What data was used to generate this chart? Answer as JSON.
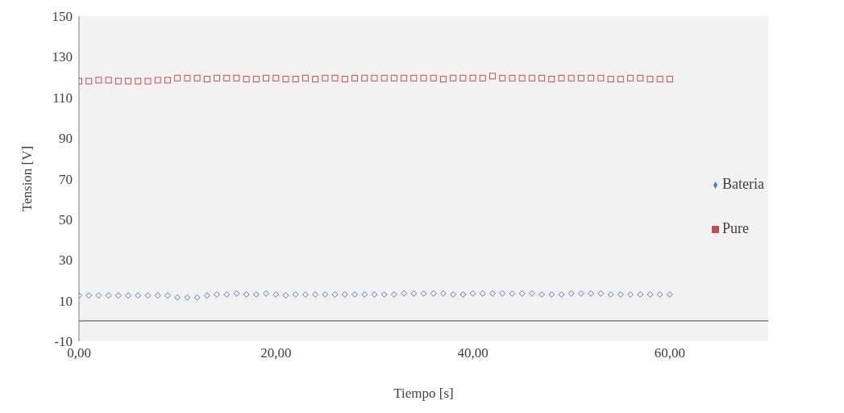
{
  "chart_data": {
    "type": "scatter",
    "xlabel": "Tiempo  [s]",
    "ylabel": "Tension  [V]",
    "xlim": [
      0,
      70
    ],
    "xticks": [
      {
        "value": 0,
        "label": "0,00"
      },
      {
        "value": 20,
        "label": "20,00"
      },
      {
        "value": 40,
        "label": "40,00"
      },
      {
        "value": 60,
        "label": "60,00"
      }
    ],
    "ylim": [
      -10,
      150
    ],
    "yticks": [
      -10,
      10,
      30,
      50,
      70,
      90,
      110,
      130,
      150
    ],
    "x": [
      0,
      1,
      2,
      3,
      4,
      5,
      6,
      7,
      8,
      9,
      10,
      11,
      12,
      13,
      14,
      15,
      16,
      17,
      18,
      19,
      20,
      21,
      22,
      23,
      24,
      25,
      26,
      27,
      28,
      29,
      30,
      31,
      32,
      33,
      34,
      35,
      36,
      37,
      38,
      39,
      40,
      41,
      42,
      43,
      44,
      45,
      46,
      47,
      48,
      49,
      50,
      51,
      52,
      53,
      54,
      55,
      56,
      57,
      58,
      59,
      60
    ],
    "grid": false,
    "legend": "right",
    "ref_lines": [
      {
        "axis": "y",
        "value": 0,
        "color": "#808080"
      }
    ],
    "series": [
      {
        "name": "Bateria",
        "color": "#4f81bd",
        "marker": "diamond",
        "values": [
          12.5,
          12.5,
          12.5,
          12.5,
          12.5,
          12.5,
          12.5,
          12.5,
          12.5,
          12.5,
          11.5,
          11.5,
          11.5,
          12.5,
          13,
          13,
          13.5,
          13,
          13,
          13.5,
          13,
          12.5,
          13,
          13,
          13,
          13,
          13,
          13,
          13,
          13,
          13,
          13,
          13,
          13.5,
          13.5,
          13.5,
          13.5,
          13.5,
          13,
          13,
          13.5,
          13.5,
          13.5,
          13.5,
          13.5,
          13.5,
          13.5,
          13,
          13,
          13,
          13.5,
          13.5,
          13.5,
          13.5,
          13,
          13,
          13,
          13,
          13,
          13,
          13
        ]
      },
      {
        "name": "Pure",
        "color": "#c0504d",
        "marker": "square",
        "values": [
          118,
          118,
          118.5,
          118.5,
          118,
          118,
          118,
          118,
          118.5,
          118.5,
          119.5,
          119.5,
          119.5,
          119,
          119.5,
          119.5,
          119.5,
          119,
          119,
          119.5,
          119.5,
          119,
          119,
          119.5,
          119,
          119.5,
          119.5,
          119,
          119.5,
          119.5,
          119.5,
          119.5,
          119.5,
          119.5,
          119.5,
          119.5,
          119.5,
          119,
          119.5,
          119.5,
          119.5,
          119.5,
          120.5,
          119.5,
          119.5,
          119.5,
          119.5,
          119.5,
          119,
          119.5,
          119.5,
          119.5,
          119.5,
          119.5,
          119,
          119,
          119.5,
          119.5,
          119,
          119,
          119
        ]
      }
    ]
  }
}
